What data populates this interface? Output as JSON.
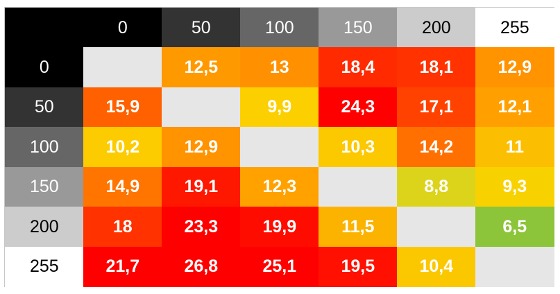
{
  "chart_data": {
    "type": "heatmap",
    "x_categories": [
      "0",
      "50",
      "100",
      "150",
      "200",
      "255"
    ],
    "y_categories": [
      "0",
      "50",
      "100",
      "150",
      "200",
      "255"
    ],
    "values": [
      [
        null,
        "12,5",
        "13",
        "18,4",
        "18,1",
        "12,9"
      ],
      [
        "15,9",
        null,
        "9,9",
        "24,3",
        "17,1",
        "12,1"
      ],
      [
        "10,2",
        "12,9",
        null,
        "10,3",
        "14,2",
        "11"
      ],
      [
        "14,9",
        "19,1",
        "12,3",
        null,
        "8,8",
        "9,3"
      ],
      [
        "18",
        "23,3",
        "19,9",
        "11,5",
        null,
        "6,5"
      ],
      [
        "21,7",
        "26,8",
        "25,1",
        "19,5",
        "10,4",
        null
      ]
    ],
    "header_colors": [
      "#000000",
      "#333333",
      "#666666",
      "#999999",
      "#cccccc",
      "#ffffff"
    ],
    "header_text_colors": [
      "#ffffff",
      "#ffffff",
      "#ffffff",
      "#ffffff",
      "#000000",
      "#000000"
    ],
    "diagonal_color": "#e6e6e6",
    "cell_colors": [
      [
        null,
        "#ff9900",
        "#ff9100",
        "#ff2a00",
        "#ff3200",
        "#ff9300"
      ],
      [
        "#ff6100",
        null,
        "#fcd000",
        "#ff0000",
        "#ff4200",
        "#ffa000"
      ],
      [
        "#fccc00",
        "#ff9300",
        null,
        "#fcc800",
        "#ff7000",
        "#fcbe00"
      ],
      [
        "#ff7500",
        "#ff1800",
        "#ffa200",
        null,
        "#dcd41a",
        "#f8d200"
      ],
      [
        "#ff3200",
        "#ff0000",
        "#ff0c00",
        "#fbb300",
        null,
        "#8cc43a"
      ],
      [
        "#ff0000",
        "#ff0000",
        "#ff0000",
        "#ff1000",
        "#fbc800",
        null
      ]
    ]
  }
}
